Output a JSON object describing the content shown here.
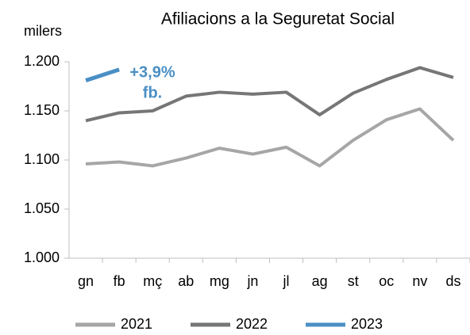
{
  "chart_data": {
    "type": "line",
    "title": "Afiliacions a la Seguretat Social",
    "y_label": "milers",
    "categories": [
      "gn",
      "fb",
      "mç",
      "ab",
      "mg",
      "jn",
      "jl",
      "ag",
      "st",
      "oc",
      "nv",
      "ds"
    ],
    "series": [
      {
        "name": "2021",
        "color": "#a6a6a6",
        "values": [
          1096,
          1098,
          1094,
          1102,
          1112,
          1106,
          1113,
          1094,
          1120,
          1141,
          1152,
          1120
        ]
      },
      {
        "name": "2022",
        "color": "#767676",
        "values": [
          1140,
          1148,
          1150,
          1165,
          1169,
          1167,
          1169,
          1146,
          1168,
          1182,
          1194,
          1184
        ]
      },
      {
        "name": "2023",
        "color": "#4a8fc4",
        "values": [
          1181,
          1192,
          null,
          null,
          null,
          null,
          null,
          null,
          null,
          null,
          null,
          null
        ]
      }
    ],
    "annotations": [
      "+3,9%",
      "fb."
    ],
    "ylim": [
      1000,
      1200
    ],
    "yticks": [
      {
        "value": 1000,
        "label": "1.000"
      },
      {
        "value": 1050,
        "label": "1.050"
      },
      {
        "value": 1100,
        "label": "1.100"
      },
      {
        "value": 1150,
        "label": "1.150"
      },
      {
        "value": 1200,
        "label": "1.200"
      }
    ],
    "grid": false,
    "legend": "bottom"
  }
}
